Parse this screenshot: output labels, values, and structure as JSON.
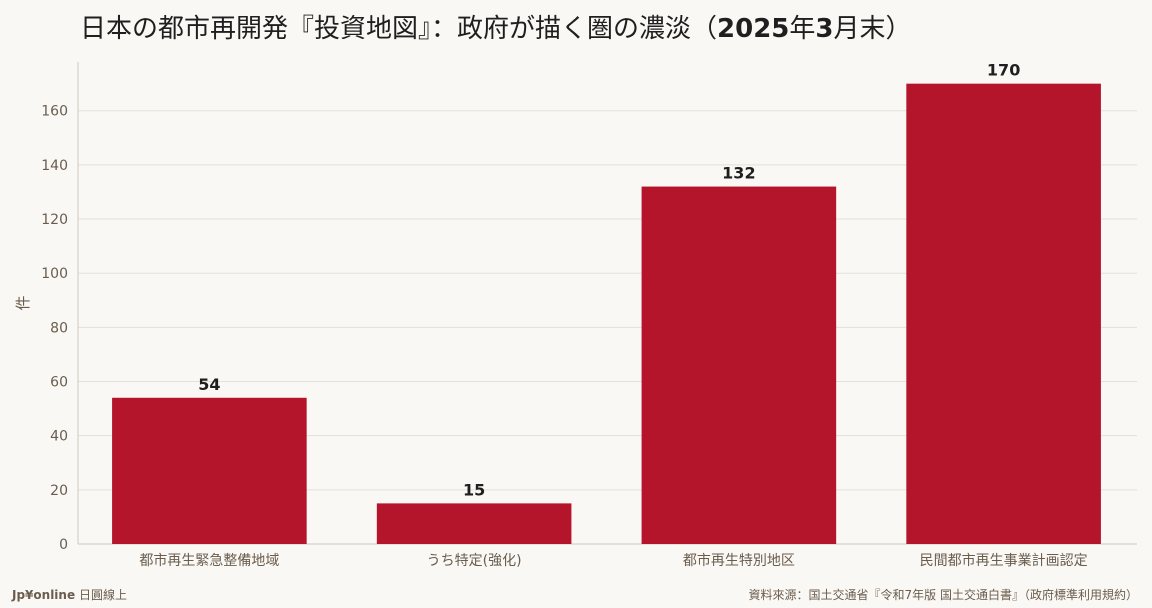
{
  "title": {
    "prefix": "日本の都市再開発『投資地図』：政府が描く圏の濃淡（",
    "year": "2025",
    "year_suffix": "年",
    "month": "3",
    "month_suffix": "月末）"
  },
  "footer": {
    "brand": "Jp¥online",
    "brand_suffix": "日圓線上",
    "source": "資料來源：国土交通省『令和7年版 国土交通白書』（政府標準利用規約）"
  },
  "colors": {
    "bar": "#b5152b",
    "axis_text": "#6b5d4e",
    "grid": "#e4e0d9",
    "value_label": "#1f1f1f"
  },
  "chart_data": {
    "type": "bar",
    "categories": [
      "都市再生緊急整備地域",
      "うち特定(強化)",
      "都市再生特別地区",
      "民間都市再生事業計画認定"
    ],
    "values": [
      54,
      15,
      132,
      170
    ],
    "value_labels": [
      "54",
      "15",
      "132",
      "170"
    ],
    "ylabel": "件",
    "yticks": [
      0,
      20,
      40,
      60,
      80,
      100,
      120,
      140,
      160
    ],
    "ylim": [
      0,
      178
    ],
    "grid": true,
    "legend": "none"
  }
}
